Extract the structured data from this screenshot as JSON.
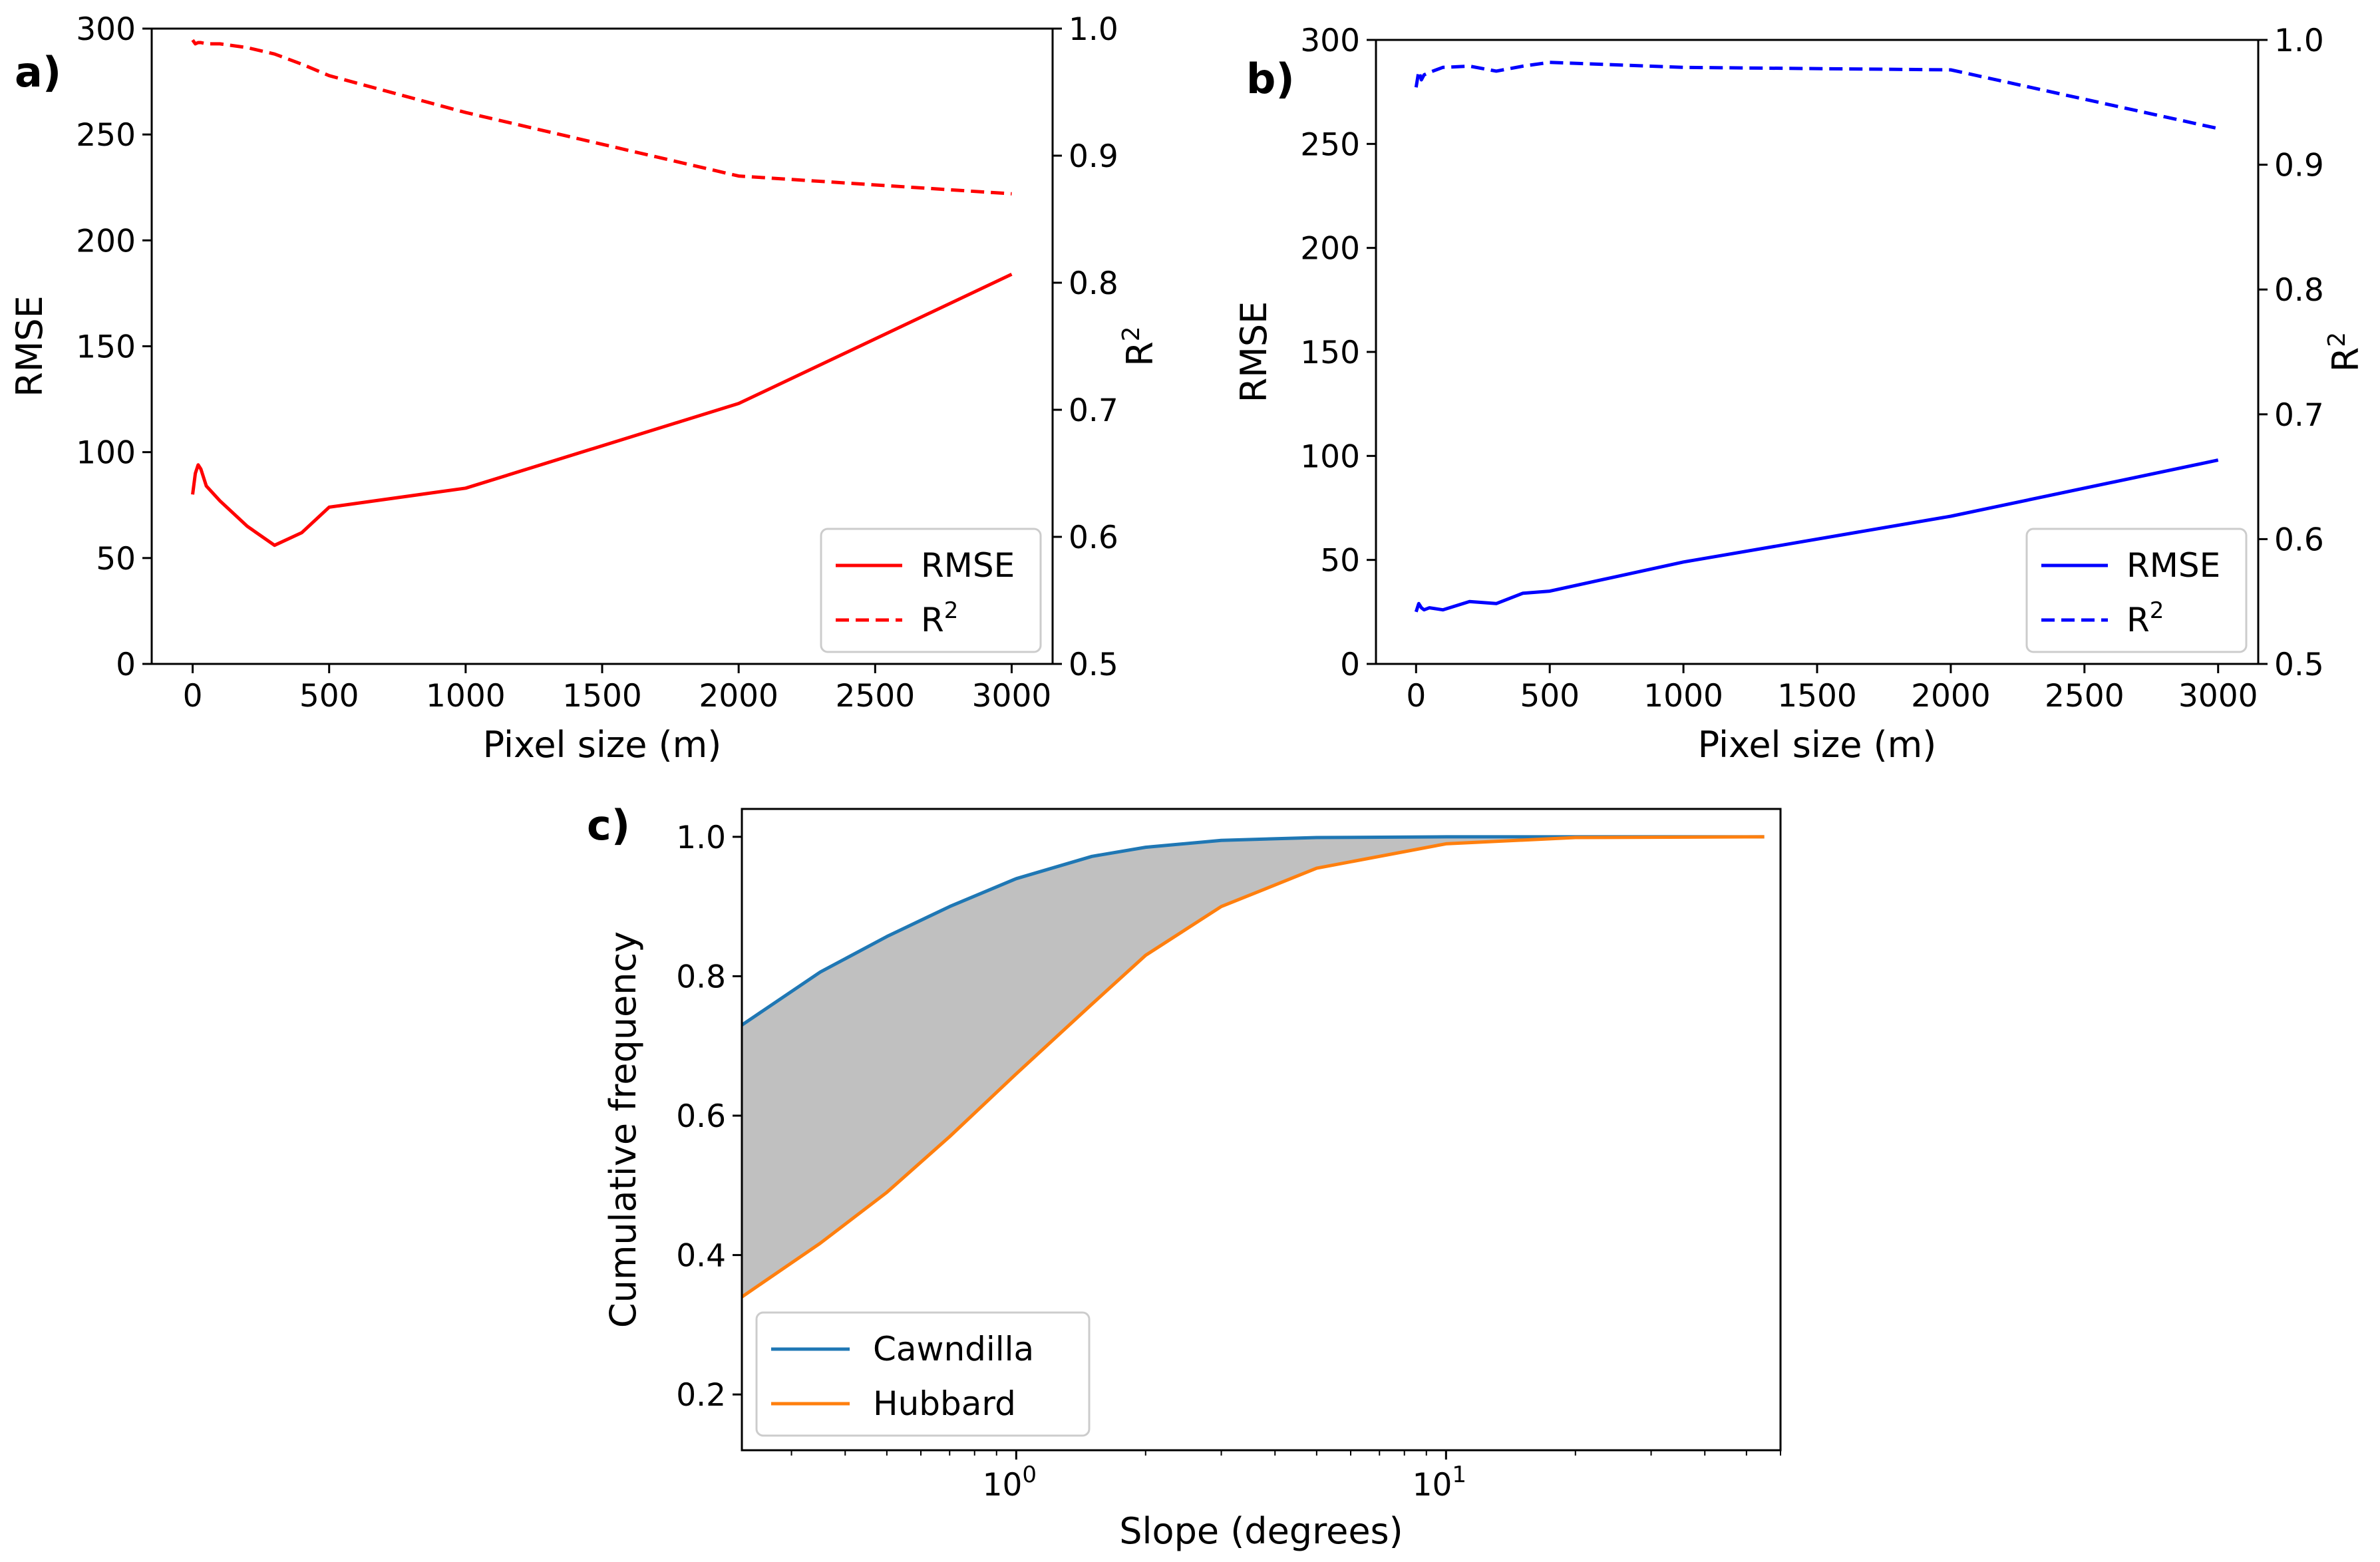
{
  "chart_data": [
    {
      "panel_label": "a)",
      "type": "line",
      "xlabel": "Pixel size (m)",
      "ylabel": "RMSE",
      "y2label": "R",
      "y2label_sup": "2",
      "xlim": [
        -150,
        3150
      ],
      "ylim": [
        0,
        300
      ],
      "y2lim": [
        0.5,
        1.0
      ],
      "xticks": [
        0,
        500,
        1000,
        1500,
        2000,
        2500,
        3000
      ],
      "yticks": [
        0,
        50,
        100,
        150,
        200,
        250,
        300
      ],
      "y2ticks": [
        "0.5",
        "0.6",
        "0.7",
        "0.8",
        "0.9",
        "1.0"
      ],
      "series": [
        {
          "name": "RMSE",
          "axis": "left",
          "color": "#ff0000",
          "style": "solid",
          "x": [
            0,
            10,
            20,
            30,
            50,
            100,
            200,
            300,
            400,
            500,
            1000,
            2000,
            3000
          ],
          "y": [
            80,
            90,
            94,
            92,
            84,
            77,
            65,
            56,
            62,
            74,
            83,
            123,
            184
          ]
        },
        {
          "name": "R",
          "name_sup": "2",
          "axis": "right",
          "color": "#ff0000",
          "style": "dashed",
          "x": [
            0,
            10,
            20,
            30,
            50,
            100,
            200,
            300,
            400,
            500,
            1000,
            2000,
            3000
          ],
          "y": [
            0.991,
            0.988,
            0.989,
            0.989,
            0.988,
            0.988,
            0.985,
            0.98,
            0.972,
            0.963,
            0.934,
            0.884,
            0.87
          ]
        }
      ],
      "legend": {
        "position": "lower-right"
      }
    },
    {
      "panel_label": "b)",
      "type": "line",
      "xlabel": "Pixel size (m)",
      "ylabel": "RMSE",
      "y2label": "R",
      "y2label_sup": "2",
      "xlim": [
        -150,
        3150
      ],
      "ylim": [
        0,
        300
      ],
      "y2lim": [
        0.5,
        1.0
      ],
      "xticks": [
        0,
        500,
        1000,
        1500,
        2000,
        2500,
        3000
      ],
      "yticks": [
        0,
        50,
        100,
        150,
        200,
        250,
        300
      ],
      "y2ticks": [
        "0.5",
        "0.6",
        "0.7",
        "0.8",
        "0.9",
        "1.0"
      ],
      "series": [
        {
          "name": "RMSE",
          "axis": "left",
          "color": "#0000ff",
          "style": "solid",
          "x": [
            0,
            10,
            20,
            30,
            50,
            100,
            200,
            300,
            400,
            500,
            1000,
            2000,
            3000
          ],
          "y": [
            25,
            29,
            27,
            26,
            27,
            26,
            30,
            29,
            34,
            35,
            49,
            71,
            98
          ]
        },
        {
          "name": "R",
          "name_sup": "2",
          "axis": "right",
          "color": "#0000ff",
          "style": "dashed",
          "x": [
            0,
            10,
            20,
            30,
            50,
            100,
            200,
            300,
            400,
            500,
            1000,
            2000,
            3000
          ],
          "y": [
            0.962,
            0.975,
            0.968,
            0.972,
            0.974,
            0.978,
            0.979,
            0.975,
            0.979,
            0.982,
            0.978,
            0.976,
            0.929
          ]
        }
      ],
      "legend": {
        "position": "lower-right"
      }
    },
    {
      "panel_label": "c)",
      "type": "line",
      "x_scale": "log",
      "xlabel": "Slope (degrees)",
      "ylabel": "Cumulative frequency",
      "xlim": [
        0.23,
        60
      ],
      "ylim": [
        0.12,
        1.04
      ],
      "xticks": [
        {
          "base": "10",
          "exp": "0",
          "value": 1
        },
        {
          "base": "10",
          "exp": "1",
          "value": 10
        }
      ],
      "yticks": [
        "0.2",
        "0.4",
        "0.6",
        "0.8",
        "1.0"
      ],
      "fill_between": {
        "color": "#c0c0c0",
        "series": [
          "Cawndilla",
          "Hubbard"
        ]
      },
      "series": [
        {
          "name": "Cawndilla",
          "color": "#1f77b4",
          "x": [
            0.23,
            0.35,
            0.5,
            0.7,
            1.0,
            1.5,
            2.0,
            3.0,
            5.0,
            10,
            20,
            55
          ],
          "y": [
            0.73,
            0.806,
            0.857,
            0.9,
            0.94,
            0.972,
            0.985,
            0.995,
            0.999,
            1.0,
            1.0,
            1.0
          ]
        },
        {
          "name": "Hubbard",
          "color": "#ff7f0e",
          "x": [
            0.23,
            0.35,
            0.5,
            0.7,
            1.0,
            1.5,
            2.0,
            3.0,
            5.0,
            10,
            20,
            55
          ],
          "y": [
            0.34,
            0.417,
            0.49,
            0.57,
            0.66,
            0.76,
            0.83,
            0.9,
            0.955,
            0.99,
            0.999,
            1.0
          ]
        }
      ],
      "legend": {
        "position": "lower-left"
      }
    }
  ]
}
